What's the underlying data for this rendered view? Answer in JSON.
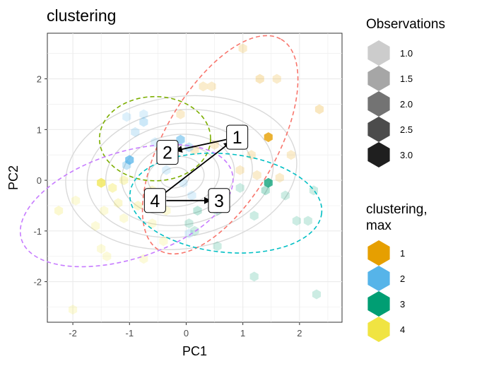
{
  "chart_data": {
    "type": "scatter",
    "title": "clustering",
    "xlabel": "PC1",
    "ylabel": "PC2",
    "xlim": [
      -2.45,
      2.75
    ],
    "ylim": [
      -2.8,
      2.9
    ],
    "x_ticks": [
      -2,
      -1,
      0,
      1,
      2
    ],
    "x_tick_labels": [
      "-2",
      "-1",
      "0",
      "1",
      "2"
    ],
    "y_ticks": [
      -2,
      -1,
      0,
      1,
      2
    ],
    "y_tick_labels": [
      "-2",
      "-1",
      "0",
      "1",
      "2"
    ],
    "grid": true,
    "legend_position": "right",
    "colors": {
      "cluster_1": "#E69F00",
      "cluster_2": "#56B4E9",
      "cluster_3": "#009E73",
      "cluster_4": "#F0E442",
      "ellipse_1": "#F8766D",
      "ellipse_2": "#7CAE00",
      "ellipse_3": "#00BFC4",
      "ellipse_4": "#C77CFF",
      "contour": "#d9d9d9"
    },
    "legends": [
      {
        "title": "Observations",
        "entries": [
          {
            "label": "1.0",
            "alpha": 0.2
          },
          {
            "label": "1.5",
            "alpha": 0.35
          },
          {
            "label": "2.0",
            "alpha": 0.55
          },
          {
            "label": "2.5",
            "alpha": 0.7
          },
          {
            "label": "3.0",
            "alpha": 0.88
          }
        ]
      },
      {
        "title": "clustering,\nmax",
        "entries": [
          {
            "label": "1",
            "color": "#E69F00"
          },
          {
            "label": "2",
            "color": "#56B4E9"
          },
          {
            "label": "3",
            "color": "#009E73"
          },
          {
            "label": "4",
            "color": "#F0E442"
          }
        ]
      }
    ],
    "centers": [
      {
        "label": "1",
        "x": 0.9,
        "y": 0.85
      },
      {
        "label": "2",
        "x": -0.33,
        "y": 0.55
      },
      {
        "label": "3",
        "x": 0.58,
        "y": -0.4
      },
      {
        "label": "4",
        "x": -0.55,
        "y": -0.4
      }
    ],
    "trajectories": [
      {
        "from": "1",
        "to": "2"
      },
      {
        "from": "4",
        "to": "1"
      },
      {
        "from": "4",
        "to": "3"
      }
    ],
    "ellipses": [
      {
        "cluster": "1",
        "cx": 0.6,
        "cy": 0.7,
        "rx": 2.15,
        "ry": 1.1,
        "angle_deg": 60
      },
      {
        "cluster": "2",
        "cx": -0.55,
        "cy": 0.82,
        "rx": 0.98,
        "ry": 0.83,
        "angle_deg": 0
      },
      {
        "cluster": "3",
        "cx": 0.7,
        "cy": -0.45,
        "rx": 1.7,
        "ry": 0.97,
        "angle_deg": -6
      },
      {
        "cluster": "4",
        "cx": -1.05,
        "cy": -0.5,
        "rx": 1.95,
        "ry": 1.05,
        "angle_deg": 18
      }
    ],
    "points": [
      {
        "x": 1.0,
        "y": 2.6,
        "cluster": "1",
        "alpha": 0.2
      },
      {
        "x": 1.3,
        "y": 2.0,
        "cluster": "1",
        "alpha": 0.25
      },
      {
        "x": 1.6,
        "y": 2.0,
        "cluster": "1",
        "alpha": 0.2
      },
      {
        "x": 0.3,
        "y": 1.85,
        "cluster": "1",
        "alpha": 0.2
      },
      {
        "x": 0.45,
        "y": 1.85,
        "cluster": "1",
        "alpha": 0.2
      },
      {
        "x": 2.35,
        "y": 1.4,
        "cluster": "1",
        "alpha": 0.25
      },
      {
        "x": 1.45,
        "y": 0.85,
        "cluster": "1",
        "alpha": 0.8
      },
      {
        "x": 1.15,
        "y": 0.5,
        "cluster": "1",
        "alpha": 0.2
      },
      {
        "x": 0.95,
        "y": 0.2,
        "cluster": "1",
        "alpha": 0.2
      },
      {
        "x": 1.25,
        "y": 0.1,
        "cluster": "1",
        "alpha": 0.2
      },
      {
        "x": 1.65,
        "y": 0.05,
        "cluster": "1",
        "alpha": 0.2
      },
      {
        "x": 0.5,
        "y": 0.7,
        "cluster": "1",
        "alpha": 0.2
      },
      {
        "x": 1.85,
        "y": 0.5,
        "cluster": "1",
        "alpha": 0.2
      },
      {
        "x": -0.1,
        "y": 1.3,
        "cluster": "1",
        "alpha": 0.2
      },
      {
        "x": 0.15,
        "y": 0.6,
        "cluster": "1",
        "alpha": 0.2
      },
      {
        "x": -0.75,
        "y": 1.3,
        "cluster": "2",
        "alpha": 0.2
      },
      {
        "x": -0.75,
        "y": 1.15,
        "cluster": "2",
        "alpha": 0.3
      },
      {
        "x": -1.05,
        "y": 1.25,
        "cluster": "2",
        "alpha": 0.2
      },
      {
        "x": -0.9,
        "y": 0.95,
        "cluster": "2",
        "alpha": 0.25
      },
      {
        "x": -1.0,
        "y": 0.4,
        "cluster": "2",
        "alpha": 0.75
      },
      {
        "x": -1.05,
        "y": 0.3,
        "cluster": "2",
        "alpha": 0.35
      },
      {
        "x": -0.55,
        "y": 0.75,
        "cluster": "2",
        "alpha": 0.2
      },
      {
        "x": -0.1,
        "y": 0.8,
        "cluster": "2",
        "alpha": 0.55
      },
      {
        "x": 0.05,
        "y": 0.65,
        "cluster": "2",
        "alpha": 0.35
      },
      {
        "x": -0.2,
        "y": 0.45,
        "cluster": "2",
        "alpha": 0.25
      },
      {
        "x": -0.35,
        "y": 0.2,
        "cluster": "2",
        "alpha": 0.2
      },
      {
        "x": -0.05,
        "y": -0.05,
        "cluster": "2",
        "alpha": 0.2
      },
      {
        "x": 0.1,
        "y": -0.3,
        "cluster": "2",
        "alpha": 0.2
      },
      {
        "x": 0.05,
        "y": -1.05,
        "cluster": "2",
        "alpha": 0.2
      },
      {
        "x": 1.45,
        "y": -0.05,
        "cluster": "3",
        "alpha": 0.75
      },
      {
        "x": 1.4,
        "y": -0.2,
        "cluster": "3",
        "alpha": 0.3
      },
      {
        "x": 1.75,
        "y": -0.3,
        "cluster": "3",
        "alpha": 0.2
      },
      {
        "x": 2.25,
        "y": -0.2,
        "cluster": "3",
        "alpha": 0.2
      },
      {
        "x": 2.15,
        "y": -0.8,
        "cluster": "3",
        "alpha": 0.2
      },
      {
        "x": 1.95,
        "y": -0.8,
        "cluster": "3",
        "alpha": 0.2
      },
      {
        "x": 1.2,
        "y": -0.7,
        "cluster": "3",
        "alpha": 0.2
      },
      {
        "x": 0.95,
        "y": -0.15,
        "cluster": "3",
        "alpha": 0.2
      },
      {
        "x": 0.7,
        "y": -0.3,
        "cluster": "3",
        "alpha": 0.25
      },
      {
        "x": 0.55,
        "y": -0.6,
        "cluster": "3",
        "alpha": 0.2
      },
      {
        "x": 0.2,
        "y": -0.6,
        "cluster": "3",
        "alpha": 0.25
      },
      {
        "x": 0.05,
        "y": -0.85,
        "cluster": "3",
        "alpha": 0.2
      },
      {
        "x": 0.15,
        "y": -1.0,
        "cluster": "3",
        "alpha": 0.2
      },
      {
        "x": 0.55,
        "y": -1.3,
        "cluster": "3",
        "alpha": 0.2
      },
      {
        "x": 1.2,
        "y": -1.9,
        "cluster": "3",
        "alpha": 0.2
      },
      {
        "x": 2.3,
        "y": -2.25,
        "cluster": "3",
        "alpha": 0.2
      },
      {
        "x": -1.5,
        "y": -0.05,
        "cluster": "4",
        "alpha": 0.7
      },
      {
        "x": -1.3,
        "y": -0.15,
        "cluster": "4",
        "alpha": 0.35
      },
      {
        "x": -1.1,
        "y": 0.0,
        "cluster": "4",
        "alpha": 0.3
      },
      {
        "x": -1.2,
        "y": -0.45,
        "cluster": "4",
        "alpha": 0.25
      },
      {
        "x": -0.85,
        "y": -0.5,
        "cluster": "4",
        "alpha": 0.25
      },
      {
        "x": -1.45,
        "y": -0.6,
        "cluster": "4",
        "alpha": 0.2
      },
      {
        "x": -1.1,
        "y": -0.75,
        "cluster": "4",
        "alpha": 0.2
      },
      {
        "x": -1.6,
        "y": -0.9,
        "cluster": "4",
        "alpha": 0.2
      },
      {
        "x": -1.95,
        "y": -0.4,
        "cluster": "4",
        "alpha": 0.2
      },
      {
        "x": -2.25,
        "y": -0.6,
        "cluster": "4",
        "alpha": 0.25
      },
      {
        "x": -0.6,
        "y": -0.2,
        "cluster": "4",
        "alpha": 0.25
      },
      {
        "x": -0.35,
        "y": -0.6,
        "cluster": "4",
        "alpha": 0.2
      },
      {
        "x": -0.6,
        "y": -0.85,
        "cluster": "4",
        "alpha": 0.2
      },
      {
        "x": -1.5,
        "y": -1.35,
        "cluster": "4",
        "alpha": 0.2
      },
      {
        "x": -1.4,
        "y": -1.5,
        "cluster": "4",
        "alpha": 0.2
      },
      {
        "x": -0.4,
        "y": -1.2,
        "cluster": "4",
        "alpha": 0.2
      },
      {
        "x": -0.75,
        "y": -1.55,
        "cluster": "4",
        "alpha": 0.2
      },
      {
        "x": -2.0,
        "y": -2.55,
        "cluster": "4",
        "alpha": 0.2
      }
    ]
  }
}
